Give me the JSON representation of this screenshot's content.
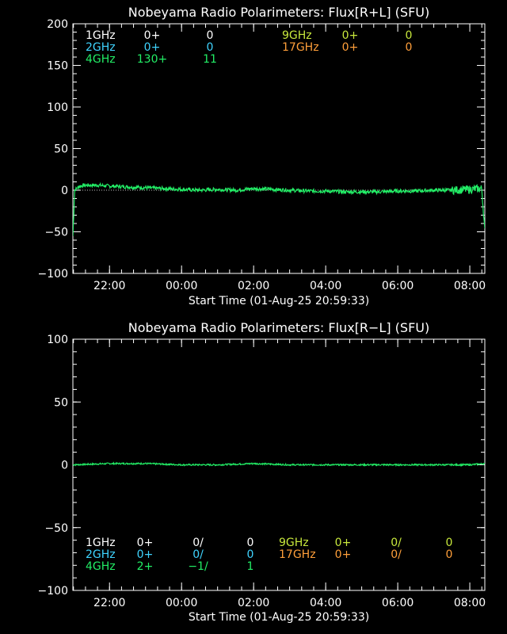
{
  "colors": {
    "background": "#000000",
    "axis": "#ffffff",
    "1GHz": "#ffffff",
    "2GHz": "#3fd4ff",
    "4GHz": "#22ee66",
    "9GHz": "#c8e83c",
    "17GHz": "#ff9f3a"
  },
  "chart_data": [
    {
      "type": "line",
      "title": "Nobeyama Radio Polarimeters: Flux[R+L] (SFU)",
      "xlabel": "Start Time (01-Aug-25 20:59:33)",
      "ylabel": "",
      "x_ticks": [
        "22:00",
        "00:00",
        "02:00",
        "04:00",
        "06:00",
        "08:00"
      ],
      "y_ticks": [
        "200",
        "150",
        "100",
        "50",
        "0",
        "−50",
        "−100"
      ],
      "xlim": [
        "20:59",
        "08:25"
      ],
      "ylim": [
        -100,
        200
      ],
      "grid": false,
      "legend_placement": "top",
      "legend": [
        {
          "freq": "1GHz",
          "v1": "0+",
          "v2": "0",
          "color": "#ffffff"
        },
        {
          "freq": "2GHz",
          "v1": "0+",
          "v2": "0",
          "color": "#3fd4ff"
        },
        {
          "freq": "4GHz",
          "v1": "130+",
          "v2": "11",
          "color": "#22ee66"
        },
        {
          "freq": "9GHz",
          "v1": "0+",
          "v2": "0",
          "color": "#c8e83c"
        },
        {
          "freq": "17GHz",
          "v1": "0+",
          "v2": "0",
          "color": "#ff9f3a"
        }
      ],
      "series": [
        {
          "color": "#22ee66",
          "x": [
            "20:59",
            "21:02",
            "21:10",
            "21:20",
            "21:40",
            "22:00",
            "22:30",
            "23:00",
            "23:30",
            "00:00",
            "00:30",
            "01:00",
            "01:30",
            "02:00",
            "02:30",
            "03:00",
            "03:30",
            "04:00",
            "04:30",
            "05:00",
            "05:30",
            "06:00",
            "06:30",
            "07:00",
            "07:30",
            "08:00",
            "08:20",
            "08:25"
          ],
          "y": [
            -55,
            0,
            5,
            6,
            6,
            5,
            4,
            3,
            2,
            1,
            0,
            1,
            0,
            2,
            1,
            0,
            -1,
            -1,
            -2,
            -2,
            -2,
            -1,
            -1,
            0,
            0,
            1,
            2,
            -50
          ]
        }
      ]
    },
    {
      "type": "line",
      "title": "Nobeyama Radio Polarimeters: Flux[R−L] (SFU)",
      "xlabel": "Start Time (01-Aug-25 20:59:33)",
      "ylabel": "",
      "x_ticks": [
        "22:00",
        "00:00",
        "02:00",
        "04:00",
        "06:00",
        "08:00"
      ],
      "y_ticks": [
        "100",
        "50",
        "0",
        "−50",
        "−100"
      ],
      "xlim": [
        "20:59",
        "08:25"
      ],
      "ylim": [
        -100,
        100
      ],
      "grid": false,
      "legend_placement": "bottom",
      "legend": [
        {
          "freq": "1GHz",
          "v1": "0+",
          "v2": "0/",
          "v3": "0",
          "color": "#ffffff"
        },
        {
          "freq": "2GHz",
          "v1": "0+",
          "v2": "0/",
          "v3": "0",
          "color": "#3fd4ff"
        },
        {
          "freq": "4GHz",
          "v1": "2+",
          "v2": "−1/",
          "v3": "1",
          "color": "#22ee66"
        },
        {
          "freq": "9GHz",
          "v1": "0+",
          "v2": "0/",
          "v3": "0",
          "color": "#c8e83c"
        },
        {
          "freq": "17GHz",
          "v1": "0+",
          "v2": "0/",
          "v3": "0",
          "color": "#ff9f3a"
        }
      ],
      "series": [
        {
          "color": "#22ee66",
          "x": [
            "20:59",
            "22:00",
            "23:00",
            "00:00",
            "01:00",
            "02:00",
            "03:00",
            "04:00",
            "05:00",
            "06:00",
            "07:00",
            "08:00",
            "08:25"
          ],
          "y": [
            0,
            1,
            1,
            0,
            0,
            1,
            0,
            0,
            0,
            0,
            0,
            0,
            1
          ]
        }
      ]
    }
  ]
}
